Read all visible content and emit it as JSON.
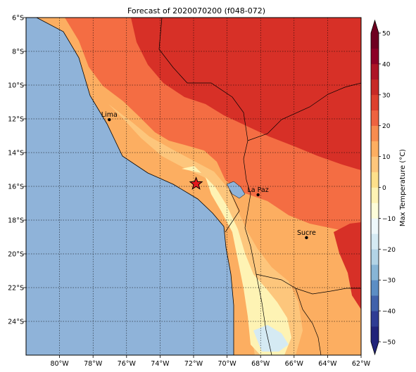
{
  "title": "Forecast of 2020070200 (f048-072)",
  "map": {
    "lon_range": [
      -82,
      -62
    ],
    "lat_range": [
      -26,
      -6
    ],
    "lon_ticks": [
      {
        "value": -80,
        "label": "80°W"
      },
      {
        "value": -78,
        "label": "78°W"
      },
      {
        "value": -76,
        "label": "76°W"
      },
      {
        "value": -74,
        "label": "74°W"
      },
      {
        "value": -72,
        "label": "72°W"
      },
      {
        "value": -70,
        "label": "70°W"
      },
      {
        "value": -68,
        "label": "68°W"
      },
      {
        "value": -66,
        "label": "66°W"
      },
      {
        "value": -64,
        "label": "64°W"
      },
      {
        "value": -62,
        "label": "62°W"
      }
    ],
    "lat_ticks": [
      {
        "value": -6,
        "label": "6°S"
      },
      {
        "value": -8,
        "label": "8°S"
      },
      {
        "value": -10,
        "label": "10°S"
      },
      {
        "value": -12,
        "label": "12°S"
      },
      {
        "value": -14,
        "label": "14°S"
      },
      {
        "value": -16,
        "label": "16°S"
      },
      {
        "value": -18,
        "label": "18°S"
      },
      {
        "value": -20,
        "label": "20°S"
      },
      {
        "value": -22,
        "label": "22°S"
      },
      {
        "value": -24,
        "label": "24°S"
      }
    ],
    "cities": [
      {
        "name": "Lima",
        "lon": -77.03,
        "lat": -12.05
      },
      {
        "name": "La Paz",
        "lon": -68.15,
        "lat": -16.5
      },
      {
        "name": "Sucre",
        "lon": -65.26,
        "lat": -19.04
      }
    ],
    "marker": {
      "type": "star",
      "lon": -71.85,
      "lat": -15.85,
      "color": "#e4191c"
    },
    "ocean_color": "#8fb3d9",
    "grid": "dotted"
  },
  "colorbar": {
    "label": "Max Temperature (°C)",
    "min": -50,
    "max": 50,
    "step": 5,
    "tick_labels": [
      "50",
      "40",
      "30",
      "20",
      "10",
      "0",
      "−10",
      "−20",
      "−30",
      "−40",
      "−50"
    ],
    "tick_values": [
      50,
      40,
      30,
      20,
      10,
      0,
      -10,
      -20,
      -30,
      -40,
      -50
    ],
    "colors_low_to_high": [
      "#313695",
      "#4575b4",
      "#74add1",
      "#abd9e9",
      "#e0f3f8",
      "#ffffbf",
      "#fee090",
      "#fdae61",
      "#f46d43",
      "#d73027",
      "#a50026"
    ],
    "band_colors": [
      "#21247a",
      "#2f3d94",
      "#4162ab",
      "#5c8ec4",
      "#87b5d6",
      "#b2d3e6",
      "#d5eaf3",
      "#eef7fa",
      "#fdfdd9",
      "#fef3b4",
      "#fee08b",
      "#fdc67c",
      "#fdae61",
      "#f78c4f",
      "#ee6340",
      "#dd412e",
      "#c72a26",
      "#ad1426",
      "#8c0026",
      "#6e0020"
    ]
  }
}
